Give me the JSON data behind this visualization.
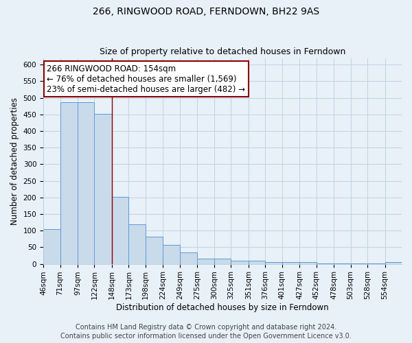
{
  "title": "266, RINGWOOD ROAD, FERNDOWN, BH22 9AS",
  "subtitle": "Size of property relative to detached houses in Ferndown",
  "xlabel": "Distribution of detached houses by size in Ferndown",
  "ylabel": "Number of detached properties",
  "bin_labels": [
    "46sqm",
    "71sqm",
    "97sqm",
    "122sqm",
    "148sqm",
    "173sqm",
    "198sqm",
    "224sqm",
    "249sqm",
    "275sqm",
    "300sqm",
    "325sqm",
    "351sqm",
    "376sqm",
    "401sqm",
    "427sqm",
    "452sqm",
    "478sqm",
    "503sqm",
    "528sqm",
    "554sqm"
  ],
  "bin_edges": [
    46,
    71,
    97,
    122,
    148,
    173,
    198,
    224,
    249,
    275,
    300,
    325,
    351,
    376,
    401,
    427,
    452,
    478,
    503,
    528,
    554,
    579
  ],
  "bar_heights": [
    105,
    487,
    487,
    452,
    202,
    120,
    82,
    57,
    35,
    16,
    16,
    10,
    10,
    5,
    5,
    5,
    2,
    2,
    2,
    2,
    5
  ],
  "bar_color": "#c9daea",
  "bar_edge_color": "#5b9bd5",
  "grid_color": "#b8cfe0",
  "bg_color": "#e8f0f8",
  "vline_x": 148,
  "vline_color": "#8b0000",
  "annotation_title": "266 RINGWOOD ROAD: 154sqm",
  "annotation_line1": "← 76% of detached houses are smaller (1,569)",
  "annotation_line2": "23% of semi-detached houses are larger (482) →",
  "annotation_box_color": "#ffffff",
  "annotation_box_edge": "#8b0000",
  "ylim": [
    0,
    620
  ],
  "yticks": [
    0,
    50,
    100,
    150,
    200,
    250,
    300,
    350,
    400,
    450,
    500,
    550,
    600
  ],
  "footer1": "Contains HM Land Registry data © Crown copyright and database right 2024.",
  "footer2": "Contains public sector information licensed under the Open Government Licence v3.0.",
  "title_fontsize": 10,
  "subtitle_fontsize": 9,
  "axis_label_fontsize": 8.5,
  "tick_fontsize": 7.5,
  "annotation_fontsize": 8.5,
  "footer_fontsize": 7
}
